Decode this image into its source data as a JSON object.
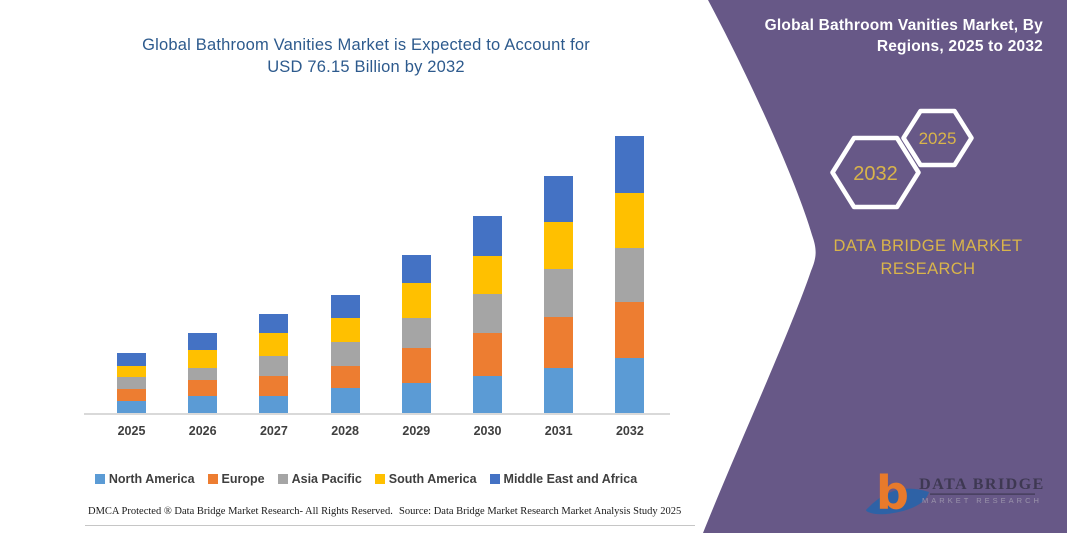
{
  "chart": {
    "title_line1": "Global Bathroom Vanities Market is Expected to Account for",
    "title_line2": "USD 76.15 Billion by 2032"
  },
  "chart_data": {
    "type": "bar",
    "stacked": true,
    "title": "Global Bathroom Vanities Market is Expected to Account for USD 76.15 Billion by 2032",
    "unit": "USD Billion",
    "categories": [
      "2025",
      "2026",
      "2027",
      "2028",
      "2029",
      "2030",
      "2031",
      "2032"
    ],
    "series": [
      {
        "name": "North America",
        "color": "#5B9BD5",
        "values": [
          3.4,
          4.6,
          4.8,
          6.9,
          8.3,
          10.3,
          12.4,
          15.1
        ]
      },
      {
        "name": "Europe",
        "color": "#ED7D31",
        "values": [
          3.2,
          4.4,
          5.5,
          6.1,
          9.6,
          11.7,
          13.9,
          15.3
        ]
      },
      {
        "name": "Asia Pacific",
        "color": "#A5A5A5",
        "values": [
          3.2,
          3.4,
          5.5,
          6.4,
          8.3,
          10.7,
          13.3,
          15.1
        ]
      },
      {
        "name": "South America",
        "color": "#FFC000",
        "values": [
          3.2,
          5.0,
          6.2,
          6.7,
          9.6,
          10.4,
          12.8,
          15.1
        ]
      },
      {
        "name": "Middle East and Africa",
        "color": "#4472C4",
        "values": [
          3.5,
          4.6,
          5.3,
          6.4,
          7.6,
          11.2,
          12.9,
          15.55
        ]
      }
    ],
    "totals": [
      16.5,
      22.0,
      27.3,
      32.5,
      43.4,
      54.3,
      65.3,
      76.15
    ],
    "ylim": [
      0,
      80
    ],
    "grid": false,
    "legend_position": "bottom",
    "xlabel": "",
    "ylabel": ""
  },
  "footer": {
    "dmca": "DMCA Protected ® Data Bridge Market Research-  All Rights Reserved.",
    "source": "Source: Data Bridge Market Research  Market Analysis Study 2025"
  },
  "panel": {
    "title_line1": "Global Bathroom Vanities Market, By",
    "title_line2": "Regions, 2025 to 2032",
    "hexagon_front_year": "2032",
    "hexagon_back_year": "2025",
    "brand_line1": "DATA BRIDGE MARKET",
    "brand_line2": "RESEARCH",
    "logo_title": "DATA BRIDGE",
    "logo_subtitle": "MARKET RESEARCH",
    "colors": {
      "panel_purple": "#675887",
      "gold": "#D9B44A",
      "white": "#FFFFFF",
      "title_blue": "#2D5A8D",
      "logo_orange": "#E87A2B",
      "logo_blue": "#2E62A6"
    }
  }
}
